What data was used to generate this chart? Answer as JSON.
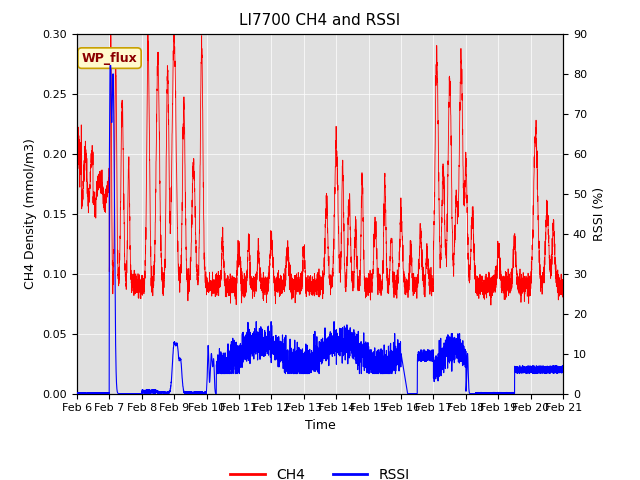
{
  "title": "LI7700 CH4 and RSSI",
  "xlabel": "Time",
  "ylabel_left": "CH4 Density (mmol/m3)",
  "ylabel_right": "RSSI (%)",
  "ylim_left": [
    0,
    0.3
  ],
  "ylim_right": [
    0,
    90
  ],
  "yticks_left": [
    0.0,
    0.05,
    0.1,
    0.15,
    0.2,
    0.25,
    0.3
  ],
  "yticks_right": [
    0,
    10,
    20,
    30,
    40,
    50,
    60,
    70,
    80,
    90
  ],
  "ch4_color": "red",
  "rssi_color": "blue",
  "bg_color": "#e0e0e0",
  "fig_bg": "white",
  "annotation_text": "WP_flux",
  "n_points": 5000,
  "legend_ch4": "CH4",
  "legend_rssi": "RSSI",
  "xtick_labels": [
    "Feb 6",
    "Feb 7",
    "Feb 8",
    "Feb 9",
    "Feb 10",
    "Feb 11",
    "Feb 12",
    "Feb 13",
    "Feb 14",
    "Feb 15",
    "Feb 16",
    "Feb 17",
    "Feb 18",
    "Feb 19",
    "Feb 20",
    "Feb 21"
  ],
  "title_fontsize": 11,
  "label_fontsize": 9,
  "tick_fontsize": 8
}
